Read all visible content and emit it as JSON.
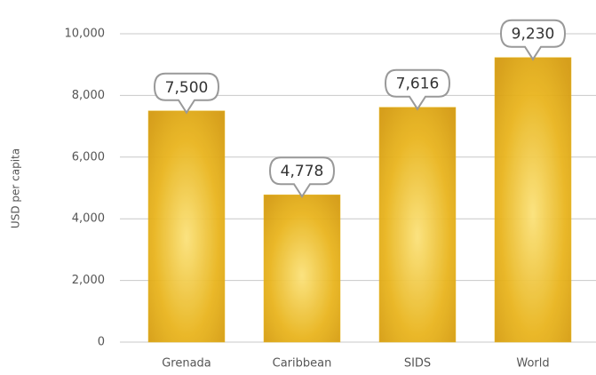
{
  "chart_data": {
    "type": "bar",
    "y_label": "USD per capita",
    "categories": [
      "Grenada",
      "Caribbean",
      "SIDS",
      "World"
    ],
    "values": [
      7500,
      4778,
      7616,
      9230
    ],
    "value_labels": [
      "7,500",
      "4,778",
      "7,616",
      "9,230"
    ],
    "color": "#e8b820",
    "ylim": [
      0,
      10000
    ],
    "yticks": [
      0,
      {
        "value": 2000,
        "label": "2,000"
      },
      {
        "value": 4000,
        "label": "4,000"
      },
      {
        "value": 6000,
        "label": "6,000"
      },
      {
        "value": 8000,
        "label": "8,000"
      },
      {
        "value": 10000,
        "label": "10,000"
      }
    ],
    "grid": true
  }
}
